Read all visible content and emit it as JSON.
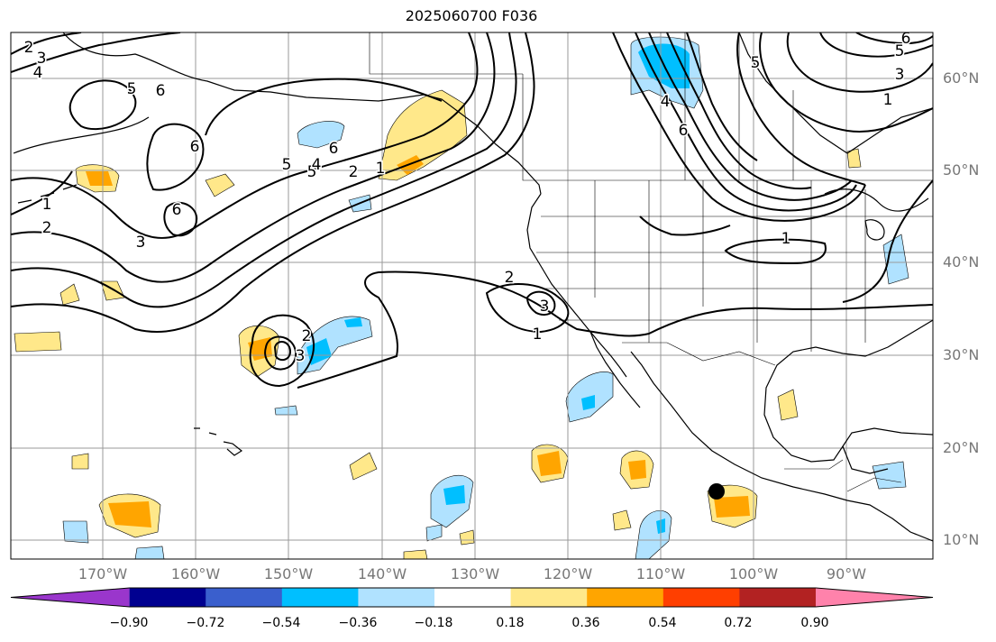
{
  "title": "2025060700 F036",
  "lat_labels": [
    "60°N",
    "50°N",
    "40°N",
    "30°N",
    "20°N",
    "10°N"
  ],
  "lon_labels": [
    "170°W",
    "160°W",
    "150°W",
    "140°W",
    "130°W",
    "120°W",
    "110°W",
    "100°W",
    "90°W"
  ],
  "colorbar": {
    "ticks": [
      "−0.90",
      "−0.72",
      "−0.54",
      "−0.36",
      "−0.18",
      "0.18",
      "0.36",
      "0.54",
      "0.72",
      "0.90"
    ],
    "colors": [
      "#9a36cc",
      "#000090",
      "#3a5fcd",
      "#00bfff",
      "#b0e2ff",
      "#ffffff",
      "#ffe88a",
      "#ffa500",
      "#ff3f00",
      "#b22222",
      "#ff82ab"
    ]
  },
  "map": {
    "projection": "cylindrical",
    "lon_range_deg": [
      -178,
      -80
    ],
    "lat_range_deg": [
      7.5,
      65
    ],
    "grid": true,
    "fill_colors": {
      "pos_light": "#ffe88a",
      "pos_mid": "#ffa500",
      "neg_light": "#b0e2ff",
      "neg_mid": "#00bfff"
    },
    "contour_labels": [
      "2",
      "3",
      "4",
      "5",
      "6",
      "6",
      "5",
      "1",
      "2",
      "6",
      "3",
      "5",
      "4",
      "2",
      "1",
      "6",
      "2",
      "3",
      "1",
      "2",
      "3",
      "6",
      "4",
      "5",
      "3",
      "1",
      "1",
      "6",
      "5"
    ],
    "marker": "black-dot"
  }
}
